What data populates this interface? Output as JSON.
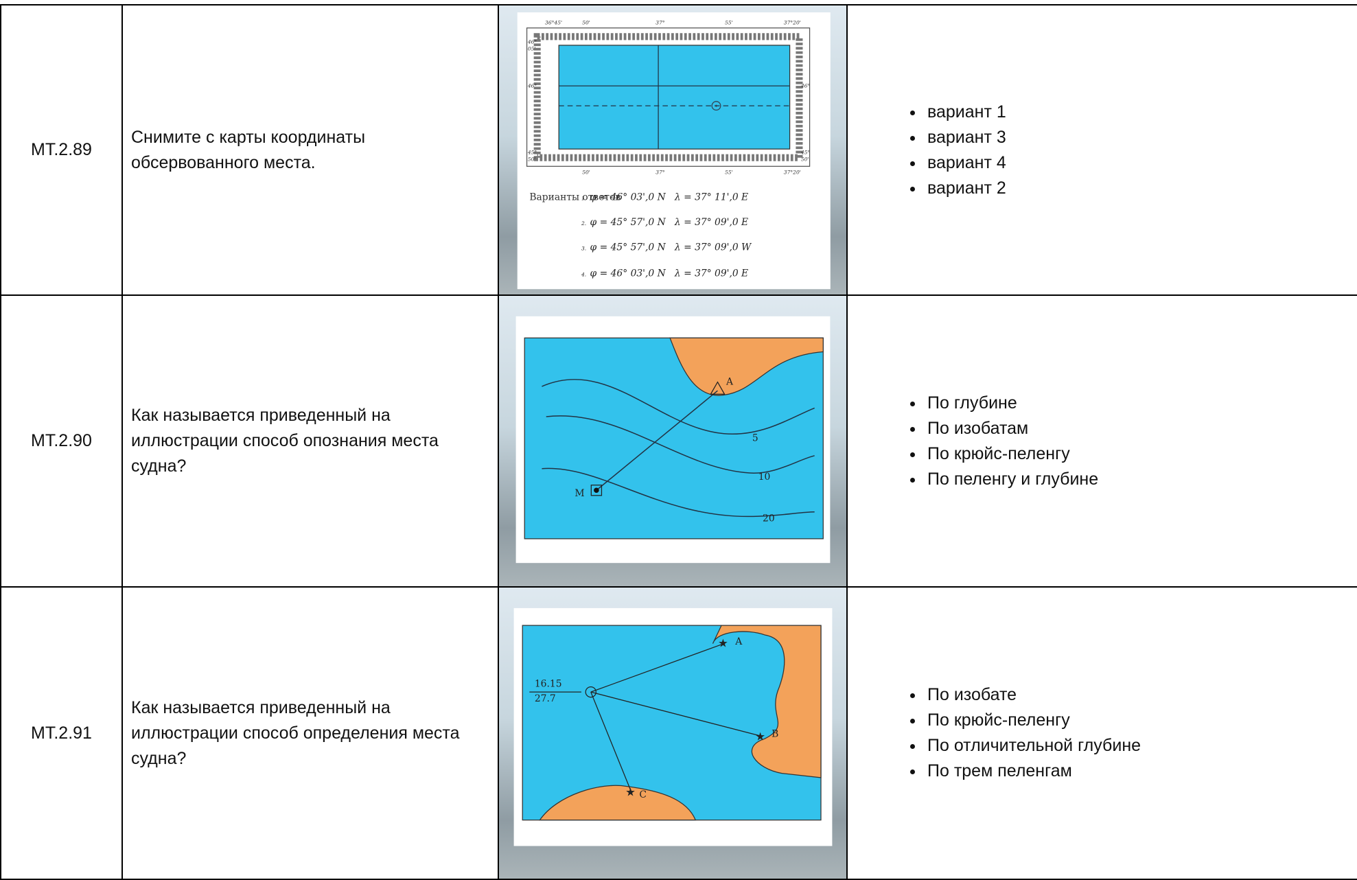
{
  "rows": [
    {
      "id": "МТ.2.89",
      "question": "Снимите с карты координаты обсервованного места.",
      "figure": {
        "top_labels": [
          "36°45'",
          "50'",
          "37°",
          "55'",
          "37°20'"
        ],
        "bottom_labels": [
          "50'",
          "37°",
          "55'",
          "37°20'"
        ],
        "left_labels": [
          "46°",
          "05'",
          "46°",
          "45°",
          "50'"
        ],
        "right_labels": [
          "46°",
          "45°",
          "50'"
        ],
        "caption": "Варианты ответов",
        "options": [
          {
            "num": "1.",
            "text": "φ = 46° 03',0 N   λ = 37° 11',0 E"
          },
          {
            "num": "2.",
            "text": "φ = 45° 57',0 N   λ = 37° 09',0 E"
          },
          {
            "num": "3.",
            "text": "φ = 45° 57',0 N   λ = 37° 09',0 W"
          },
          {
            "num": "4.",
            "text": "φ = 46° 03',0 N   λ = 37° 09',0 E"
          }
        ]
      },
      "answers": [
        "вариант 1",
        "вариант 3",
        "вариант 4",
        "вариант 2"
      ]
    },
    {
      "id": "МТ.2.90",
      "question": "Как называется приведенный на иллюстрации способ опознания места судна?",
      "figure": {
        "point_a": "A",
        "point_m": "M",
        "depths": [
          "5",
          "10",
          "20"
        ]
      },
      "answers": [
        "По глубине",
        "По изобатам",
        "По крюйс-пеленгу",
        "По пеленгу и глубине"
      ]
    },
    {
      "id": "МТ.2.91",
      "question": "Как называется приведенный на иллюстрации способ определения места судна?",
      "figure": {
        "point_a": "A",
        "point_b": "B",
        "point_c": "C",
        "time": "16.15",
        "log": "27.7"
      },
      "answers": [
        "По изобате",
        "По крюйс-пеленгу",
        "По отличительной глубине",
        "По трем пеленгам"
      ]
    }
  ]
}
